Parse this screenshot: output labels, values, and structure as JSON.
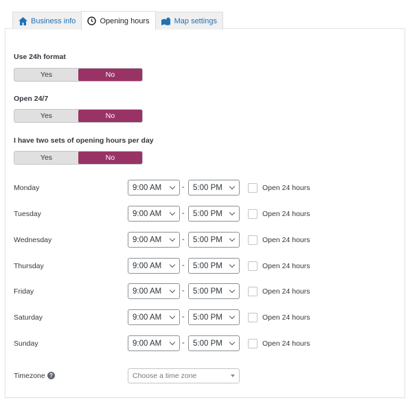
{
  "tabs": [
    {
      "label": "Business info",
      "icon": "home-icon"
    },
    {
      "label": "Opening hours",
      "icon": "clock-icon",
      "active": true
    },
    {
      "label": "Map settings",
      "icon": "map-icon"
    }
  ],
  "settings": [
    {
      "label": "Use 24h format",
      "yes": "Yes",
      "no": "No",
      "selected": "No"
    },
    {
      "label": "Open 24/7",
      "yes": "Yes",
      "no": "No",
      "selected": "No"
    },
    {
      "label": "I have two sets of opening hours per day",
      "yes": "Yes",
      "no": "No",
      "selected": "No"
    }
  ],
  "days": [
    {
      "name": "Monday",
      "open": "9:00 AM",
      "close": "5:00 PM",
      "open24_label": "Open 24 hours",
      "open24": false
    },
    {
      "name": "Tuesday",
      "open": "9:00 AM",
      "close": "5:00 PM",
      "open24_label": "Open 24 hours",
      "open24": false
    },
    {
      "name": "Wednesday",
      "open": "9:00 AM",
      "close": "5:00 PM",
      "open24_label": "Open 24 hours",
      "open24": false
    },
    {
      "name": "Thursday",
      "open": "9:00 AM",
      "close": "5:00 PM",
      "open24_label": "Open 24 hours",
      "open24": false
    },
    {
      "name": "Friday",
      "open": "9:00 AM",
      "close": "5:00 PM",
      "open24_label": "Open 24 hours",
      "open24": false
    },
    {
      "name": "Saturday",
      "open": "9:00 AM",
      "close": "5:00 PM",
      "open24_label": "Open 24 hours",
      "open24": false
    },
    {
      "name": "Sunday",
      "open": "9:00 AM",
      "close": "5:00 PM",
      "open24_label": "Open 24 hours",
      "open24": false
    }
  ],
  "separator": "-",
  "timezone": {
    "label": "Timezone",
    "placeholder": "Choose a time zone"
  },
  "colors": {
    "accent": "#993366",
    "link": "#2271b1"
  }
}
